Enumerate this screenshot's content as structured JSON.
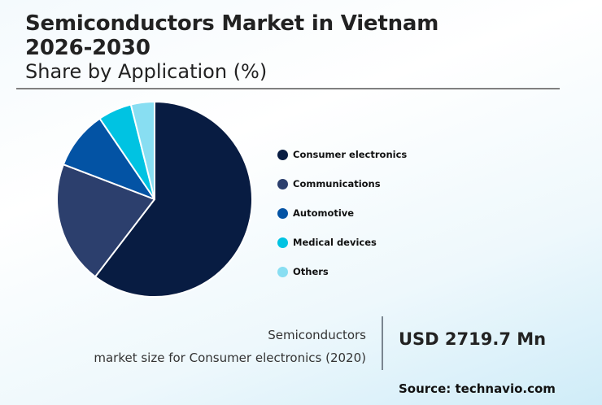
{
  "header": {
    "title_line1": "Semiconductors Market in Vietnam",
    "title_line2": "2026-2030",
    "subtitle": "Share by Application (%)"
  },
  "legend": [
    {
      "label": "Consumer electronics",
      "color": "#081c42"
    },
    {
      "label": "Communications",
      "color": "#2c3f6d"
    },
    {
      "label": "Automotive",
      "color": "#0353a4"
    },
    {
      "label": "Medical devices",
      "color": "#00c3e2"
    },
    {
      "label": "Others",
      "color": "#88def2"
    }
  ],
  "stat": {
    "caption_line1": "Semiconductors",
    "caption_line2": "market size for Consumer electronics (2020)",
    "value": "USD 2719.7 Mn"
  },
  "source": "Source: technavio.com",
  "chart_data": {
    "type": "pie",
    "title": "Semiconductors Market in Vietnam 2026-2030",
    "subtitle": "Share by Application (%)",
    "categories": [
      "Consumer electronics",
      "Communications",
      "Automotive",
      "Medical devices",
      "Others"
    ],
    "values": [
      60.4,
      20.4,
      9.7,
      5.6,
      3.9
    ],
    "colors": [
      "#081c42",
      "#2c3f6d",
      "#0353a4",
      "#00c3e2",
      "#88def2"
    ],
    "start_angle": "12 o'clock",
    "direction": "clockwise",
    "legend_position": "right",
    "annotation": "Semiconductors market size for Consumer electronics (2020): USD 2719.7 Mn"
  }
}
